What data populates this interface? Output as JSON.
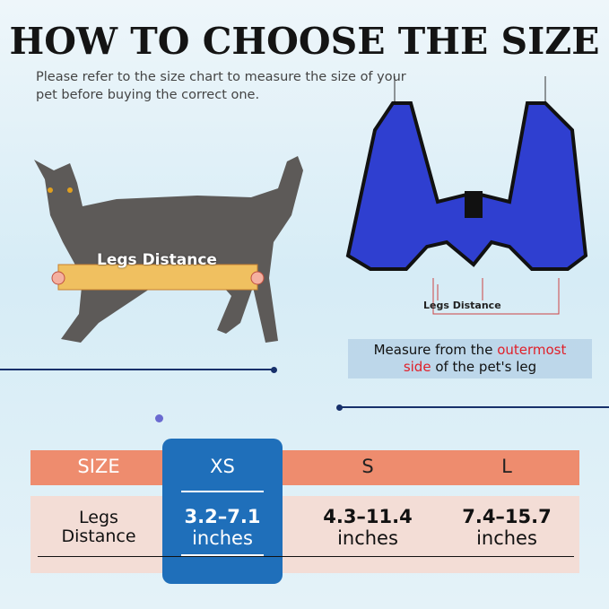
{
  "title": "HOW TO CHOOSE THE SIZE",
  "subtitle": "Please refer to the size chart to measure the size of your pet before buying the correct one.",
  "cat_label": "Legs Distance",
  "harness_label": "Legs Distance",
  "measure": {
    "part1": "Measure from the ",
    "highlight1": "outermost",
    "newline_highlight": "side",
    "part2": " of the pet's leg"
  },
  "colors": {
    "header": "#ee8c6e",
    "selected": "#1f6fba",
    "row": "#f3ddd6",
    "highlight": "#e0202a",
    "harness": "#2f3fd0"
  },
  "table": {
    "header": [
      "SIZE",
      "XS",
      "S",
      "L"
    ],
    "row_label_1": "Legs",
    "row_label_2": "Distance",
    "values": [
      {
        "range": "3.2–7.1",
        "unit": "inches"
      },
      {
        "range": "4.3–11.4",
        "unit": "inches"
      },
      {
        "range": "7.4–15.7",
        "unit": "inches"
      }
    ],
    "selected": "XS"
  }
}
